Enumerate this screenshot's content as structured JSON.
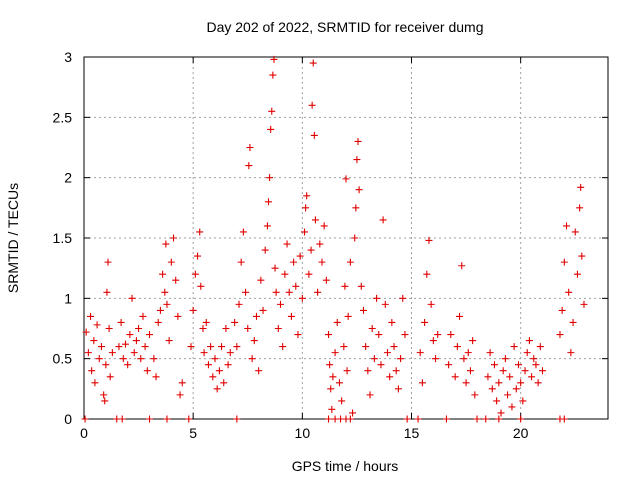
{
  "chart_data": {
    "type": "scatter",
    "title": "Day 202 of 2022, SRMTID for receiver dumg",
    "xlabel": "GPS time / hours",
    "ylabel": "SRMTID / TECUs",
    "xlim": [
      0,
      24
    ],
    "ylim": [
      0,
      3
    ],
    "xticks": [
      0,
      5,
      10,
      15,
      20
    ],
    "xtick_labels": [
      "0",
      "5",
      "10",
      "15",
      "20"
    ],
    "yticks": [
      0,
      0.5,
      1,
      1.5,
      2,
      2.5,
      3
    ],
    "ytick_labels": [
      "0",
      "0.5",
      "1",
      "1.5",
      "2",
      "2.5",
      "3"
    ],
    "grid": true,
    "marker": "+",
    "series": [
      {
        "name": "SRMTID",
        "color": "#e00000",
        "points": [
          [
            0.1,
            0.72
          ],
          [
            0.2,
            0.55
          ],
          [
            0.3,
            0.85
          ],
          [
            0.35,
            0.4
          ],
          [
            0.45,
            0.65
          ],
          [
            0.5,
            0.3
          ],
          [
            0.6,
            0.78
          ],
          [
            0.7,
            0.5
          ],
          [
            0.8,
            0.6
          ],
          [
            0.9,
            0.2
          ],
          [
            0.95,
            0.15
          ],
          [
            1.0,
            0.45
          ],
          [
            1.05,
            1.05
          ],
          [
            1.1,
            1.3
          ],
          [
            1.15,
            0.75
          ],
          [
            1.2,
            0.35
          ],
          [
            1.3,
            0.55
          ],
          [
            1.6,
            0.6
          ],
          [
            1.7,
            0.8
          ],
          [
            1.8,
            0.5
          ],
          [
            1.9,
            0.62
          ],
          [
            2.0,
            0.45
          ],
          [
            2.1,
            0.7
          ],
          [
            2.2,
            1.0
          ],
          [
            2.3,
            0.55
          ],
          [
            2.4,
            0.65
          ],
          [
            2.5,
            0.75
          ],
          [
            2.6,
            0.5
          ],
          [
            2.7,
            0.85
          ],
          [
            2.8,
            0.6
          ],
          [
            2.9,
            0.4
          ],
          [
            3.0,
            0.7
          ],
          [
            3.2,
            0.5
          ],
          [
            3.3,
            0.35
          ],
          [
            3.4,
            0.8
          ],
          [
            3.5,
            0.9
          ],
          [
            3.6,
            1.2
          ],
          [
            3.7,
            1.05
          ],
          [
            3.75,
            1.45
          ],
          [
            3.8,
            0.95
          ],
          [
            3.9,
            0.65
          ],
          [
            4.0,
            1.3
          ],
          [
            4.1,
            1.5
          ],
          [
            4.2,
            1.15
          ],
          [
            4.3,
            0.85
          ],
          [
            4.4,
            0.2
          ],
          [
            4.5,
            0.3
          ],
          [
            4.9,
            0.6
          ],
          [
            5.0,
            0.9
          ],
          [
            5.1,
            1.2
          ],
          [
            5.2,
            1.35
          ],
          [
            5.3,
            1.55
          ],
          [
            5.35,
            1.1
          ],
          [
            5.45,
            0.75
          ],
          [
            5.5,
            0.55
          ],
          [
            5.6,
            0.8
          ],
          [
            5.7,
            0.45
          ],
          [
            5.8,
            0.6
          ],
          [
            5.9,
            0.35
          ],
          [
            6.0,
            0.5
          ],
          [
            6.1,
            0.25
          ],
          [
            6.2,
            0.4
          ],
          [
            6.3,
            0.6
          ],
          [
            6.4,
            0.3
          ],
          [
            6.5,
            0.75
          ],
          [
            6.6,
            0.45
          ],
          [
            6.7,
            0.55
          ],
          [
            6.9,
            0.8
          ],
          [
            7.0,
            0.6
          ],
          [
            7.1,
            0.95
          ],
          [
            7.2,
            1.3
          ],
          [
            7.3,
            1.55
          ],
          [
            7.4,
            1.05
          ],
          [
            7.5,
            0.75
          ],
          [
            7.55,
            2.1
          ],
          [
            7.6,
            2.25
          ],
          [
            7.7,
            0.5
          ],
          [
            7.8,
            0.65
          ],
          [
            7.9,
            0.85
          ],
          [
            8.0,
            0.4
          ],
          [
            8.1,
            1.15
          ],
          [
            8.2,
            0.9
          ],
          [
            8.3,
            1.4
          ],
          [
            8.4,
            1.6
          ],
          [
            8.45,
            1.8
          ],
          [
            8.5,
            2.0
          ],
          [
            8.55,
            2.4
          ],
          [
            8.6,
            2.55
          ],
          [
            8.65,
            2.85
          ],
          [
            8.7,
            2.98
          ],
          [
            8.75,
            1.25
          ],
          [
            8.8,
            1.05
          ],
          [
            8.9,
            0.75
          ],
          [
            9.0,
            0.95
          ],
          [
            9.1,
            0.6
          ],
          [
            9.2,
            1.2
          ],
          [
            9.3,
            1.45
          ],
          [
            9.4,
            1.05
          ],
          [
            9.5,
            0.85
          ],
          [
            9.6,
            1.3
          ],
          [
            9.7,
            1.1
          ],
          [
            9.8,
            0.7
          ],
          [
            9.9,
            1.35
          ],
          [
            10.0,
            1.0
          ],
          [
            10.1,
            1.55
          ],
          [
            10.15,
            1.75
          ],
          [
            10.2,
            1.85
          ],
          [
            10.3,
            1.2
          ],
          [
            10.4,
            1.4
          ],
          [
            10.45,
            2.6
          ],
          [
            10.5,
            2.95
          ],
          [
            10.55,
            2.35
          ],
          [
            10.6,
            1.65
          ],
          [
            10.7,
            1.05
          ],
          [
            10.8,
            1.45
          ],
          [
            10.9,
            1.3
          ],
          [
            11.0,
            1.6
          ],
          [
            11.1,
            1.15
          ],
          [
            11.2,
            0.7
          ],
          [
            11.25,
            0.45
          ],
          [
            11.3,
            0.25
          ],
          [
            11.35,
            0.08
          ],
          [
            11.4,
            0.35
          ],
          [
            11.5,
            0.55
          ],
          [
            11.6,
            0.8
          ],
          [
            11.7,
            0.3
          ],
          [
            11.8,
            0.15
          ],
          [
            11.9,
            0.6
          ],
          [
            11.95,
            1.1
          ],
          [
            12.0,
            1.99
          ],
          [
            12.05,
            0.4
          ],
          [
            12.1,
            0.85
          ],
          [
            12.2,
            1.3
          ],
          [
            12.3,
            0.05
          ],
          [
            12.4,
            1.5
          ],
          [
            12.45,
            1.75
          ],
          [
            12.5,
            2.15
          ],
          [
            12.55,
            2.3
          ],
          [
            12.6,
            1.9
          ],
          [
            12.7,
            1.1
          ],
          [
            12.8,
            0.9
          ],
          [
            12.9,
            0.6
          ],
          [
            13.0,
            0.4
          ],
          [
            13.1,
            0.2
          ],
          [
            13.2,
            0.75
          ],
          [
            13.3,
            0.5
          ],
          [
            13.4,
            1.0
          ],
          [
            13.5,
            0.7
          ],
          [
            13.6,
            0.45
          ],
          [
            13.7,
            1.65
          ],
          [
            13.8,
            0.95
          ],
          [
            13.9,
            0.55
          ],
          [
            14.0,
            0.35
          ],
          [
            14.1,
            0.8
          ],
          [
            14.2,
            0.6
          ],
          [
            14.3,
            0.4
          ],
          [
            14.4,
            0.25
          ],
          [
            14.5,
            0.5
          ],
          [
            14.6,
            1.0
          ],
          [
            14.7,
            0.7
          ],
          [
            15.4,
            0.55
          ],
          [
            15.5,
            0.3
          ],
          [
            15.6,
            0.8
          ],
          [
            15.7,
            1.2
          ],
          [
            15.8,
            1.48
          ],
          [
            15.9,
            0.95
          ],
          [
            16.0,
            0.65
          ],
          [
            16.1,
            0.5
          ],
          [
            16.2,
            0.7
          ],
          [
            16.7,
            0.45
          ],
          [
            16.8,
            0.7
          ],
          [
            17.0,
            0.35
          ],
          [
            17.1,
            0.6
          ],
          [
            17.2,
            0.85
          ],
          [
            17.3,
            1.27
          ],
          [
            17.4,
            0.5
          ],
          [
            17.5,
            0.3
          ],
          [
            17.6,
            0.55
          ],
          [
            17.7,
            0.4
          ],
          [
            17.8,
            0.65
          ],
          [
            17.9,
            0.2
          ],
          [
            18.5,
            0.35
          ],
          [
            18.6,
            0.55
          ],
          [
            18.7,
            0.25
          ],
          [
            18.8,
            0.45
          ],
          [
            18.9,
            0.15
          ],
          [
            19.0,
            0.3
          ],
          [
            19.1,
            0.05
          ],
          [
            19.2,
            0.4
          ],
          [
            19.3,
            0.5
          ],
          [
            19.4,
            0.2
          ],
          [
            19.5,
            0.35
          ],
          [
            19.6,
            0.1
          ],
          [
            19.7,
            0.6
          ],
          [
            19.8,
            0.25
          ],
          [
            19.9,
            0.45
          ],
          [
            20.0,
            0.3
          ],
          [
            20.1,
            0.15
          ],
          [
            20.2,
            0.4
          ],
          [
            20.3,
            0.55
          ],
          [
            20.4,
            0.65
          ],
          [
            20.5,
            0.35
          ],
          [
            20.6,
            0.5
          ],
          [
            20.7,
            0.45
          ],
          [
            20.8,
            0.3
          ],
          [
            20.9,
            0.6
          ],
          [
            21.0,
            0.4
          ],
          [
            21.8,
            0.7
          ],
          [
            21.9,
            0.9
          ],
          [
            22.0,
            1.3
          ],
          [
            22.1,
            1.6
          ],
          [
            22.2,
            1.05
          ],
          [
            22.3,
            0.55
          ],
          [
            22.4,
            0.8
          ],
          [
            22.5,
            1.55
          ],
          [
            22.6,
            1.2
          ],
          [
            22.7,
            1.75
          ],
          [
            22.75,
            1.92
          ],
          [
            22.8,
            1.35
          ],
          [
            22.9,
            0.95
          ],
          [
            0.05,
            0
          ],
          [
            1.5,
            0
          ],
          [
            1.75,
            0
          ],
          [
            3.0,
            0
          ],
          [
            3.8,
            0
          ],
          [
            4.8,
            0
          ],
          [
            7.0,
            0
          ],
          [
            11.2,
            0
          ],
          [
            11.5,
            0
          ],
          [
            11.75,
            0
          ],
          [
            12.0,
            0
          ],
          [
            12.2,
            0
          ],
          [
            14.8,
            0
          ],
          [
            15.3,
            0
          ],
          [
            16.6,
            0
          ],
          [
            18.0,
            0
          ],
          [
            18.4,
            0
          ],
          [
            19.0,
            0
          ],
          [
            20.0,
            0
          ],
          [
            21.8,
            0
          ],
          [
            22.0,
            0
          ]
        ]
      }
    ]
  }
}
